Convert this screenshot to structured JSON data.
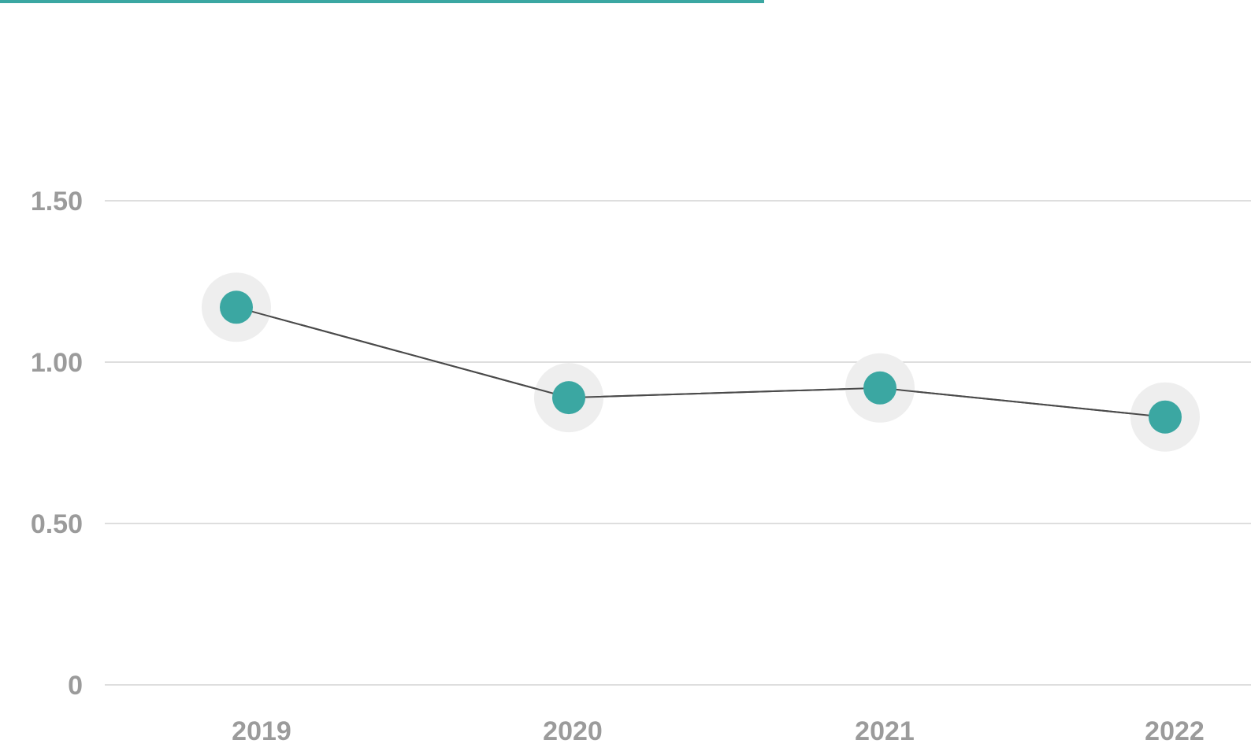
{
  "colors": {
    "accent": "#3ba7a2",
    "line": "#4a4a4a",
    "grid": "#d4d4d4",
    "halo": "#eeeeee",
    "tick_text": "#9b9b9b"
  },
  "chart_data": {
    "type": "line",
    "title": "",
    "xlabel": "",
    "ylabel": "",
    "categories": [
      "2019",
      "2020",
      "2021",
      "2022"
    ],
    "series": [
      {
        "values": [
          1.17,
          0.89,
          0.92,
          0.83
        ]
      }
    ],
    "ylim": [
      0,
      1.5
    ],
    "y_ticks": [
      0,
      0.5,
      1.0,
      1.5
    ],
    "y_tick_labels": [
      "0",
      "0.50",
      "1.00",
      "1.50"
    ],
    "grid": true,
    "legend": "none"
  }
}
